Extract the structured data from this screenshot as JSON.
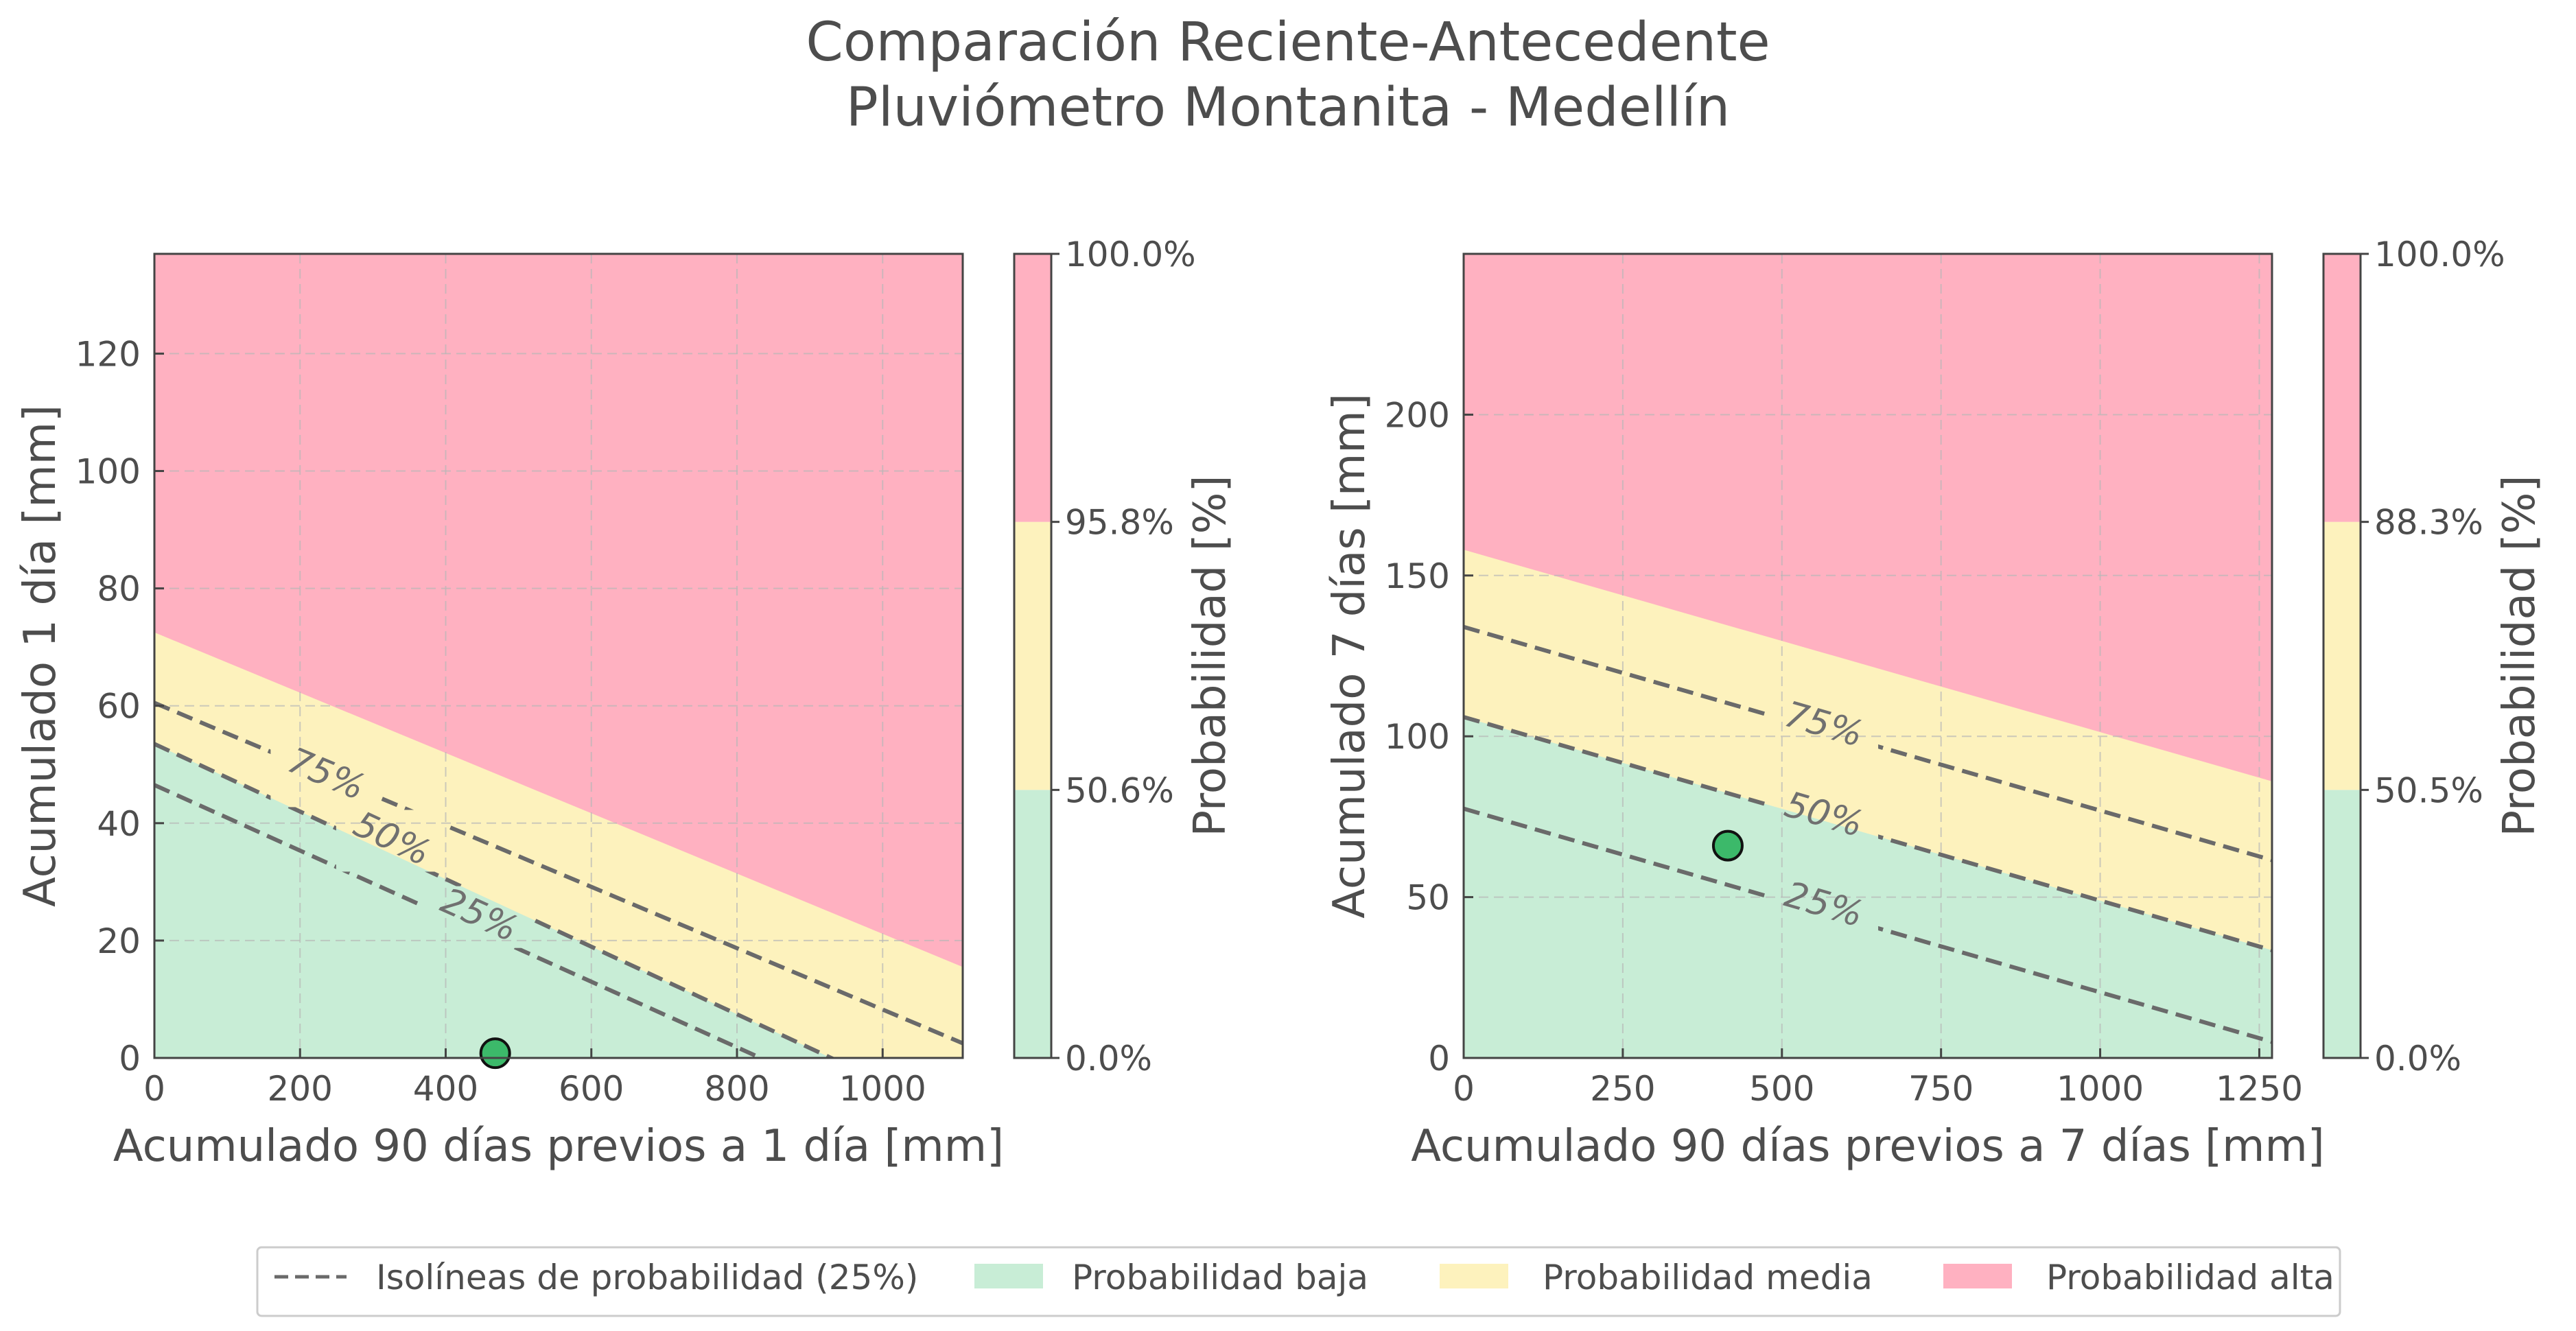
{
  "figure": {
    "title_line1": "Comparación Reciente-Antecedente",
    "title_line2": "Pluviómetro Montanita - Medellín"
  },
  "colors": {
    "low": "#c8edd6",
    "mid": "#fdf2bd",
    "high": "#ffb1c1",
    "isoline": "#6a6a6a",
    "point": "#3cb96a",
    "text": "#4d4d4d"
  },
  "legend": {
    "isolines": "Isolíneas de probabilidad (25%)",
    "low": "Probabilidad baja",
    "mid": "Probabilidad media",
    "high": "Probabilidad alta"
  },
  "chart_data": [
    {
      "type": "area",
      "xlabel": "Acumulado 90 días previos a 1 día [mm]",
      "ylabel": "Acumulado 1 día [mm]",
      "xlim": [
        0,
        1110
      ],
      "ylim": [
        0,
        137
      ],
      "xticks": [
        0,
        200,
        400,
        600,
        800,
        1000
      ],
      "yticks": [
        0,
        20,
        40,
        60,
        80,
        100,
        120
      ],
      "grid": true,
      "regions": {
        "low_upper_boundary": [
          [
            0,
            53.5
          ],
          [
            1110,
            -10.4
          ]
        ],
        "high_lower_boundary": [
          [
            0,
            72.5
          ],
          [
            1110,
            15.5
          ]
        ]
      },
      "isolines": [
        {
          "label": "25%",
          "line": [
            [
              0,
              46.5
            ],
            [
              1110,
              -15.5
            ]
          ],
          "label_at": [
            445,
            24
          ]
        },
        {
          "label": "50%",
          "line": [
            [
              0,
              53.5
            ],
            [
              1110,
              -10.4
            ]
          ],
          "label_at": [
            325,
            37
          ]
        },
        {
          "label": "75%",
          "line": [
            [
              0,
              60.5
            ],
            [
              1110,
              2.5
            ]
          ],
          "label_at": [
            235,
            48
          ]
        }
      ],
      "point": {
        "x": 468,
        "y": 0.8
      },
      "colorbar": {
        "label": "Probabilidad [%]",
        "ticks": [
          "0.0%",
          "50.6%",
          "95.8%",
          "100.0%"
        ]
      }
    },
    {
      "type": "area",
      "xlabel": "Acumulado 90 días previos a 7 días [mm]",
      "ylabel": "Acumulado 7 días [mm]",
      "xlim": [
        0,
        1270
      ],
      "ylim": [
        0,
        250
      ],
      "xticks": [
        0,
        250,
        500,
        750,
        1000,
        1250
      ],
      "yticks": [
        0,
        50,
        100,
        150,
        200
      ],
      "grid": true,
      "regions": {
        "low_upper_boundary": [
          [
            0,
            106
          ],
          [
            1270,
            33.5
          ]
        ],
        "high_lower_boundary": [
          [
            0,
            158
          ],
          [
            1270,
            86
          ]
        ]
      },
      "isolines": [
        {
          "label": "25%",
          "line": [
            [
              0,
              77.5
            ],
            [
              1270,
              5
            ]
          ],
          "label_at": [
            565,
            47
          ]
        },
        {
          "label": "50%",
          "line": [
            [
              0,
              106
            ],
            [
              1270,
              33.5
            ]
          ],
          "label_at": [
            565,
            75
          ]
        },
        {
          "label": "75%",
          "line": [
            [
              0,
              134
            ],
            [
              1270,
              61.5
            ]
          ],
          "label_at": [
            565,
            103
          ]
        }
      ],
      "point": {
        "x": 415,
        "y": 66
      },
      "colorbar": {
        "label": "Probabilidad [%]",
        "ticks": [
          "0.0%",
          "50.5%",
          "88.3%",
          "100.0%"
        ]
      }
    }
  ]
}
